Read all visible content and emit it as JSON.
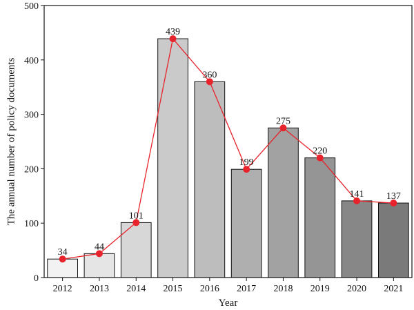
{
  "chart_data": {
    "type": "bar",
    "categories": [
      "2012",
      "2013",
      "2014",
      "2015",
      "2016",
      "2017",
      "2018",
      "2019",
      "2020",
      "2021"
    ],
    "values": [
      34,
      44,
      101,
      439,
      360,
      199,
      275,
      220,
      141,
      137
    ],
    "data_labels": [
      "34",
      "44",
      "101",
      "439",
      "360",
      "199",
      "275",
      "220",
      "141",
      "137"
    ],
    "overlay": "line with markers connecting bar tops",
    "title": "",
    "xlabel": "Year",
    "ylabel": "The annual number of policy documents",
    "ylim": [
      0,
      500
    ],
    "yticks": [
      "0",
      "100",
      "200",
      "300",
      "400",
      "500"
    ],
    "grid": false,
    "legend": "none",
    "colors": {
      "bar_gradient_start": "#f2f2f2",
      "bar_gradient_end": "#7a7a7a",
      "bar_edge": "#111111",
      "line": "#e8232b",
      "marker": "#e8232b"
    }
  }
}
